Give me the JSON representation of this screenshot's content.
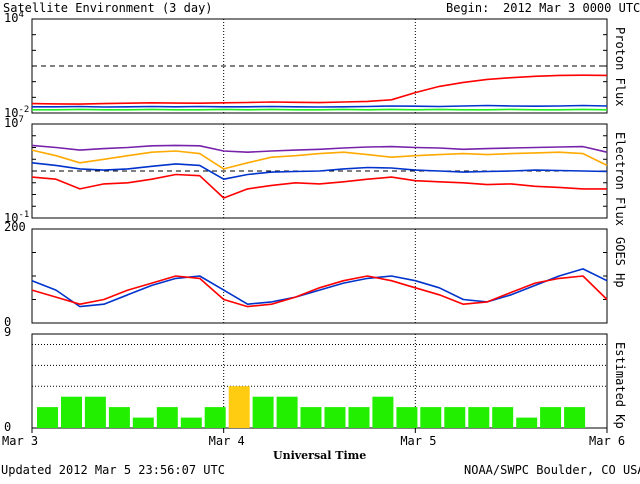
{
  "header": {
    "title": "Satellite Environment (3 day)",
    "begin_label": "Begin:",
    "begin_value": "2012 Mar 3 0000 UTC"
  },
  "footer": {
    "updated": "Updated 2012 Mar  5 23:56:07 UTC",
    "credit": "NOAA/SWPC Boulder, CO USA"
  },
  "colors": {
    "red": "#ff0000",
    "blue": "#0033cc",
    "green": "#22ee22",
    "orange": "#ffaa00",
    "purple": "#7722aa",
    "kp_bar": "#22ee00",
    "kp_bar_highlight": "#ffcc11"
  },
  "chart_data": [
    {
      "id": "proton",
      "type": "line",
      "ylabel": "Proton Flux",
      "yscale": "log",
      "ylim": [
        0.01,
        10000
      ],
      "ytick_labels": [
        {
          "value": 10000,
          "base": "10",
          "exp": "4"
        },
        {
          "value": 0.01,
          "base": "10",
          "exp": "-2"
        }
      ],
      "threshold": 10,
      "x": [
        0,
        3,
        6,
        9,
        12,
        15,
        18,
        21,
        24,
        27,
        30,
        33,
        36,
        39,
        42,
        45,
        48,
        51,
        54,
        57,
        60,
        63,
        66,
        69,
        72
      ],
      "series": [
        {
          "color": "red",
          "values": [
            0.04,
            0.038,
            0.037,
            0.04,
            0.042,
            0.045,
            0.043,
            0.042,
            0.045,
            0.047,
            0.05,
            0.048,
            0.046,
            0.05,
            0.055,
            0.07,
            0.2,
            0.5,
            0.9,
            1.4,
            1.8,
            2.2,
            2.5,
            2.6,
            2.5
          ]
        },
        {
          "color": "blue",
          "values": [
            0.025,
            0.025,
            0.026,
            0.024,
            0.025,
            0.026,
            0.025,
            0.026,
            0.025,
            0.025,
            0.026,
            0.025,
            0.024,
            0.025,
            0.026,
            0.028,
            0.027,
            0.026,
            0.028,
            0.03,
            0.028,
            0.027,
            0.028,
            0.03,
            0.028
          ]
        },
        {
          "color": "green",
          "values": [
            0.016,
            0.016,
            0.017,
            0.016,
            0.016,
            0.017,
            0.016,
            0.016,
            0.017,
            0.016,
            0.017,
            0.016,
            0.016,
            0.017,
            0.016,
            0.017,
            0.016,
            0.017,
            0.016,
            0.016,
            0.017,
            0.016,
            0.016,
            0.017,
            0.016
          ]
        }
      ]
    },
    {
      "id": "electron",
      "type": "line",
      "ylabel": "Electron Flux",
      "yscale": "log",
      "ylim": [
        0.1,
        10000000
      ],
      "ytick_labels": [
        {
          "value": 10000000,
          "base": "10",
          "exp": "7"
        },
        {
          "value": 0.1,
          "base": "10",
          "exp": "-1"
        }
      ],
      "threshold": 1000,
      "x": [
        0,
        3,
        6,
        9,
        12,
        15,
        18,
        21,
        24,
        27,
        30,
        33,
        36,
        39,
        42,
        45,
        48,
        51,
        54,
        57,
        60,
        63,
        66,
        69,
        72
      ],
      "series": [
        {
          "color": "purple",
          "values": [
            150000,
            100000,
            60000,
            80000,
            100000,
            140000,
            150000,
            140000,
            50000,
            40000,
            50000,
            60000,
            70000,
            90000,
            110000,
            120000,
            100000,
            90000,
            70000,
            80000,
            90000,
            100000,
            110000,
            120000,
            40000
          ]
        },
        {
          "color": "orange",
          "values": [
            60000,
            20000,
            5000,
            10000,
            20000,
            40000,
            50000,
            30000,
            1500,
            5000,
            15000,
            20000,
            30000,
            40000,
            25000,
            15000,
            20000,
            25000,
            30000,
            25000,
            30000,
            35000,
            40000,
            30000,
            3000
          ]
        },
        {
          "color": "blue",
          "values": [
            5000,
            3000,
            1500,
            1200,
            1500,
            2500,
            4000,
            3000,
            200,
            500,
            800,
            900,
            1000,
            1500,
            2000,
            1800,
            1200,
            1000,
            800,
            900,
            1000,
            1200,
            1100,
            1000,
            900
          ]
        },
        {
          "color": "red",
          "values": [
            300,
            200,
            30,
            80,
            100,
            200,
            500,
            400,
            5,
            30,
            60,
            100,
            80,
            120,
            200,
            300,
            150,
            120,
            100,
            70,
            80,
            50,
            40,
            30,
            30
          ]
        }
      ]
    },
    {
      "id": "goes_hp",
      "type": "line",
      "ylabel": "GOES Hp",
      "yscale": "linear",
      "ylim": [
        0,
        200
      ],
      "ytick_labels": [
        {
          "value": 200,
          "base": "200",
          "exp": ""
        },
        {
          "value": 0,
          "base": "0",
          "exp": ""
        }
      ],
      "x": [
        0,
        3,
        6,
        9,
        12,
        15,
        18,
        21,
        24,
        27,
        30,
        33,
        36,
        39,
        42,
        45,
        48,
        51,
        54,
        57,
        60,
        63,
        66,
        69,
        72
      ],
      "series": [
        {
          "color": "blue",
          "values": [
            90,
            70,
            35,
            40,
            60,
            80,
            95,
            100,
            70,
            40,
            45,
            55,
            70,
            85,
            95,
            100,
            90,
            75,
            50,
            45,
            60,
            80,
            100,
            115,
            90
          ]
        },
        {
          "color": "red",
          "values": [
            70,
            55,
            40,
            50,
            70,
            85,
            100,
            95,
            50,
            35,
            40,
            55,
            75,
            90,
            100,
            90,
            75,
            60,
            40,
            45,
            65,
            85,
            95,
            100,
            50
          ]
        }
      ]
    },
    {
      "id": "kp",
      "type": "bar",
      "ylabel": "Estimated Kp",
      "yscale": "linear",
      "ylim": [
        0,
        9
      ],
      "ytick_labels": [
        {
          "value": 9,
          "base": "9",
          "exp": ""
        },
        {
          "value": 0,
          "base": "0",
          "exp": ""
        }
      ],
      "values": [
        2,
        3,
        3,
        2,
        1,
        2,
        1,
        2,
        4,
        3,
        3,
        2,
        2,
        2,
        3,
        2,
        2,
        2,
        2,
        2,
        1,
        2,
        2
      ],
      "highlight_index": 8,
      "dotted_levels": [
        4,
        6,
        8
      ]
    }
  ],
  "x_axis": {
    "label": "Universal Time",
    "ticks": [
      {
        "hour": 0,
        "label": "Mar 3"
      },
      {
        "hour": 24,
        "label": "Mar 4"
      },
      {
        "hour": 48,
        "label": "Mar 5"
      },
      {
        "hour": 72,
        "label": "Mar 6"
      }
    ]
  }
}
